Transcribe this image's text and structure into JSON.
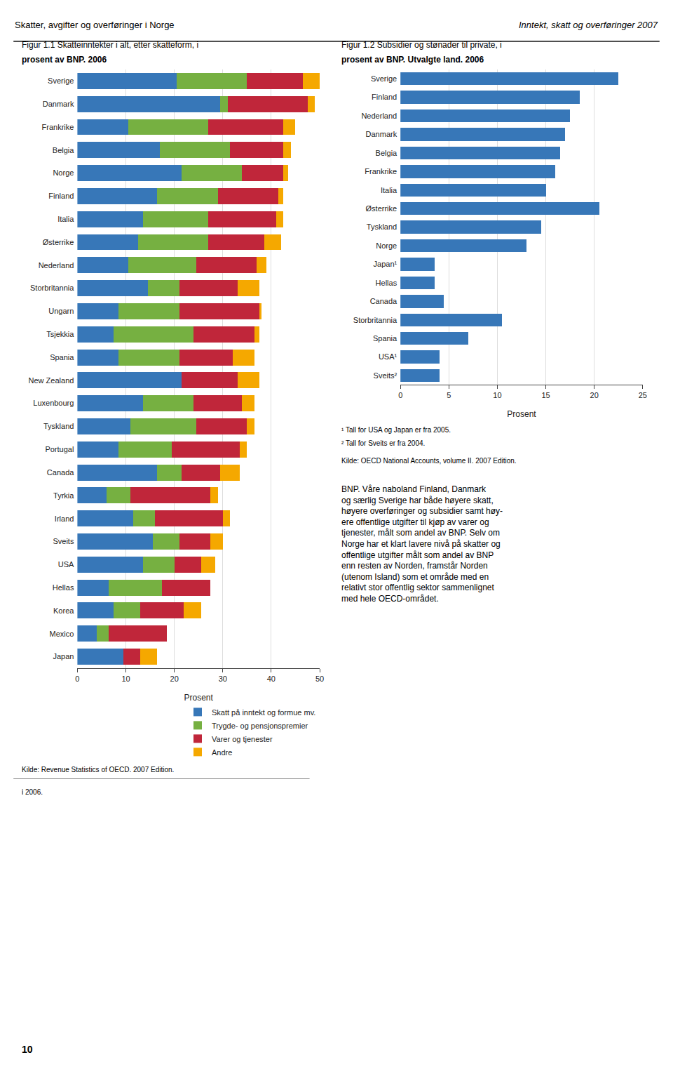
{
  "chart_data": [
    {
      "type": "bar",
      "orientation": "horizontal",
      "stacked": true,
      "title": "Figur 1.1 Skatteinntekter i alt, etter skatteform, i",
      "subtitle": "prosent av BNP. 2006",
      "xlabel": "Prosent",
      "categories": [
        "Sverige",
        "Danmark",
        "Frankrike",
        "Belgia",
        "Norge",
        "Finland",
        "Italia",
        "Østerrike",
        "Nederland",
        "Storbritannia",
        "Ungarn",
        "Tsjekkia",
        "Spania",
        "New Zealand",
        "Luxenbourg",
        "Tyskland",
        "Portugal",
        "Canada",
        "Tyrkia",
        "Irland",
        "Sveits",
        "USA",
        "Hellas",
        "Korea",
        "Mexico",
        "Japan"
      ],
      "series": [
        {
          "name": "Skatt på inntekt og formue mv.",
          "color": "#3777b8",
          "values": [
            20.5,
            29.5,
            10.5,
            17.0,
            21.5,
            16.5,
            13.5,
            12.5,
            10.5,
            14.5,
            8.5,
            7.5,
            8.5,
            21.5,
            13.5,
            11.0,
            8.5,
            16.5,
            6.0,
            11.5,
            15.5,
            13.5,
            6.5,
            7.5,
            4.0,
            9.5
          ]
        },
        {
          "name": "Trygde- og pensjonspremier",
          "color": "#76b041",
          "values": [
            14.5,
            1.5,
            16.5,
            14.5,
            12.5,
            12.5,
            13.5,
            14.5,
            14.0,
            6.5,
            12.5,
            16.5,
            12.5,
            0.0,
            10.5,
            13.5,
            11.0,
            5.0,
            5.0,
            4.5,
            5.5,
            6.5,
            11.0,
            5.5,
            2.5,
            0.0
          ]
        },
        {
          "name": "Varer og tjenester",
          "color": "#c0263a",
          "values": [
            11.5,
            16.5,
            15.5,
            11.0,
            8.5,
            12.5,
            14.0,
            11.5,
            12.5,
            12.0,
            16.5,
            12.5,
            11.0,
            11.5,
            10.0,
            10.5,
            14.0,
            8.0,
            16.5,
            14.0,
            6.5,
            5.5,
            10.0,
            9.0,
            12.0,
            3.5
          ]
        },
        {
          "name": "Andre",
          "color": "#f5a800",
          "values": [
            3.5,
            1.5,
            2.5,
            1.5,
            1.0,
            1.0,
            1.5,
            3.5,
            2.0,
            4.5,
            0.5,
            1.0,
            4.5,
            4.5,
            2.5,
            1.5,
            1.5,
            4.0,
            1.5,
            1.5,
            2.5,
            3.0,
            0.0,
            3.5,
            0.0,
            3.5
          ]
        }
      ],
      "xlim": [
        0,
        50
      ],
      "xticks": [
        0,
        10,
        20,
        30,
        40,
        50
      ],
      "grid": true,
      "legend": "lower right",
      "annotations": [
        "Skatter, avgifter og overføringer i Norge",
        "Inntekt, skatt og overføringer 2007",
        "Kilde: Revenue Statistics of OECD. 2007 Edition.",
        "i 2006.",
        "10"
      ]
    },
    {
      "type": "bar",
      "orientation": "horizontal",
      "title": "Figur 1.2 Subsidier og stønader til private, i",
      "subtitle": "prosent av BNP. Utvalgte land. 2006",
      "xlabel": "Prosent",
      "categories": [
        "Sverige",
        "Finland",
        "Nederland",
        "Danmark",
        "Belgia",
        "Frankrike",
        "Italia",
        "Østerrike",
        "Tyskland",
        "Norge",
        "Japan¹",
        "Hellas",
        "Canada",
        "Storbritannia",
        "Spania",
        "USA¹",
        "Sveits²"
      ],
      "values": [
        22.5,
        18.5,
        17.5,
        17.0,
        16.5,
        16.0,
        15.0,
        20.5,
        14.5,
        13.0,
        3.5,
        3.5,
        4.5,
        10.5,
        7.0,
        4.0,
        4.0
      ],
      "color": "#3777b8",
      "xlim": [
        0,
        25
      ],
      "xticks": [
        0,
        5,
        10,
        15,
        20,
        25
      ],
      "grid": true,
      "annotations": [
        "¹ Tall for USA og Japan er fra 2005.",
        "² Tall for Sveits er fra 2004.",
        "Kilde: OECD National Accounts, volume II. 2007 Edition.",
        "BNP. Våre naboland Finland, Danmark\nog særlig Sverige har både høyere skatt,\nhøyere overføringer og subsidier samt høy-\nere offentlige utgifter til kjøp av varer og\ntjenester, målt som andel av BNP. Selv om\nNorge har et klart lavere nivå på skatter og\noffentlige utgifter målt som andel av BNP\nenn resten av Norden, framstår Norden\n(utenom Island) som et område med en\nrelativt stor offentlig sektor sammenlignet\nmed hele OECD-området."
      ]
    }
  ]
}
